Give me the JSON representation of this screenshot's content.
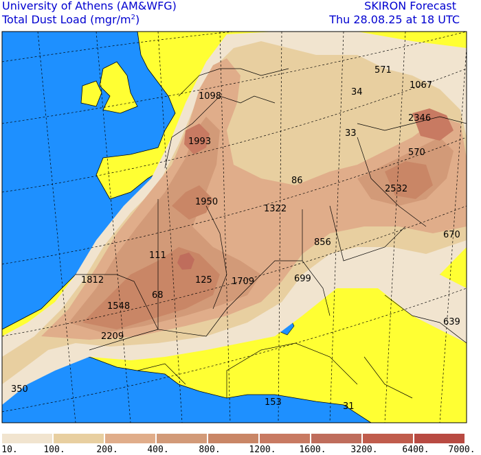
{
  "header": {
    "institution": "University of Athens (AM&WFG)",
    "variable": "Total Dust Load (mgr/m",
    "variable_exp": "2",
    "variable_close": ")",
    "product": "SKIRON Forecast",
    "valid_time": "Thu 28.08.25 at 18 UTC"
  },
  "colors": {
    "sea": "#1e90ff",
    "land": "#ffff33",
    "level_1": "#f1e4cf",
    "level_2": "#e8cfa0",
    "level_3": "#e0ad8a",
    "level_4": "#d29a78",
    "level_5": "#c98666",
    "level_6": "#c87a62",
    "level_7": "#bf6d5c",
    "level_8": "#c05c4c",
    "level_9": "#b84a42"
  },
  "legend": {
    "ticks": [
      "10.",
      "100.",
      "200.",
      "400.",
      "800.",
      "1200.",
      "1600.",
      "3200.",
      "6400.",
      "7000."
    ]
  },
  "map_labels": [
    {
      "id": "v571",
      "text": "571"
    },
    {
      "id": "v1067",
      "text": "1067"
    },
    {
      "id": "v34",
      "text": "34"
    },
    {
      "id": "v1098",
      "text": "1098"
    },
    {
      "id": "v2346",
      "text": "2346"
    },
    {
      "id": "v33",
      "text": "33"
    },
    {
      "id": "v1993",
      "text": "1993"
    },
    {
      "id": "v570",
      "text": "570"
    },
    {
      "id": "v86",
      "text": "86"
    },
    {
      "id": "v2532",
      "text": "2532"
    },
    {
      "id": "v1950",
      "text": "1950"
    },
    {
      "id": "v1322",
      "text": "1322"
    },
    {
      "id": "v670",
      "text": "670"
    },
    {
      "id": "v856",
      "text": "856"
    },
    {
      "id": "v111",
      "text": "111"
    },
    {
      "id": "v1812",
      "text": "1812"
    },
    {
      "id": "v125",
      "text": "125"
    },
    {
      "id": "v1709",
      "text": "1709"
    },
    {
      "id": "v699",
      "text": "699"
    },
    {
      "id": "v68",
      "text": "68"
    },
    {
      "id": "v1548",
      "text": "1548"
    },
    {
      "id": "v639",
      "text": "639"
    },
    {
      "id": "v2209",
      "text": "2209"
    },
    {
      "id": "v350",
      "text": "350"
    },
    {
      "id": "v153",
      "text": "153"
    },
    {
      "id": "v31",
      "text": "31"
    }
  ]
}
